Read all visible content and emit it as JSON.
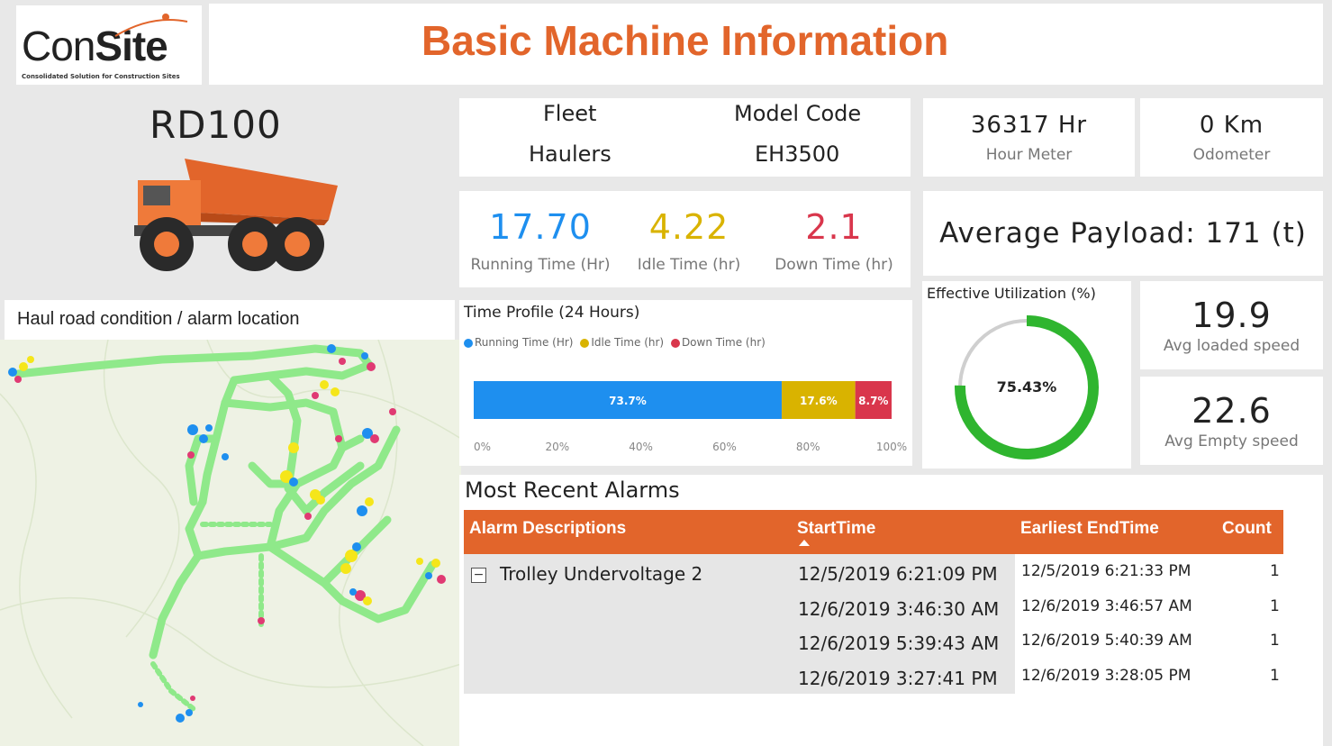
{
  "header": {
    "logo_main_prefix": "Con",
    "logo_main_suffix": "Site",
    "logo_tagline": "Consolidated Solution for Construction Sites",
    "title": "Basic Machine Information"
  },
  "machine": {
    "id": "RD100"
  },
  "fleet": {
    "fleet_label": "Fleet",
    "fleet_value": "Haulers",
    "model_label": "Model Code",
    "model_value": "EH3500"
  },
  "hour_meter": {
    "value": "36317 Hr",
    "label": "Hour Meter"
  },
  "odometer": {
    "value": "0 Km",
    "label": "Odometer"
  },
  "times": {
    "running_value": "17.70",
    "running_label": "Running Time (Hr)",
    "idle_value": "4.22",
    "idle_label": "Idle Time (hr)",
    "down_value": "2.1",
    "down_label": "Down Time (hr)"
  },
  "payload": {
    "text": "Average Payload: 171 (t)"
  },
  "map": {
    "title": "Haul road condition / alarm location"
  },
  "time_profile": {
    "title": "Time Profile (24 Hours)",
    "legend": [
      "Running Time (Hr)",
      "Idle Time (hr)",
      "Down Time (hr)"
    ]
  },
  "utilization": {
    "title": "Effective Utilization (%)",
    "value_text": "75.43%",
    "value": 75.43
  },
  "speeds": {
    "loaded_value": "19.9",
    "loaded_label": "Avg loaded speed",
    "empty_value": "22.6",
    "empty_label": "Avg Empty speed"
  },
  "alarms": {
    "title": "Most Recent Alarms",
    "columns": [
      "Alarm Descriptions",
      "StartTime",
      "Earliest EndTime",
      "Count"
    ],
    "group": "Trolley Undervoltage 2",
    "expand_symbol": "−",
    "rows": [
      {
        "start": "12/5/2019 6:21:09 PM",
        "end": "12/5/2019 6:21:33 PM",
        "count": "1"
      },
      {
        "start": "12/6/2019 3:46:30 AM",
        "end": "12/6/2019 3:46:57 AM",
        "count": "1"
      },
      {
        "start": "12/6/2019 5:39:43 AM",
        "end": "12/6/2019 5:40:39 AM",
        "count": "1"
      },
      {
        "start": "12/6/2019 3:27:41 PM",
        "end": "12/6/2019 3:28:05 PM",
        "count": "1"
      }
    ]
  },
  "colors": {
    "accent": "#e2652b",
    "running": "#1e8fef",
    "idle": "#d9b300",
    "down": "#d9364c",
    "gauge": "#2fb52f",
    "road": "#8fe98a"
  },
  "chart_data": {
    "type": "bar",
    "title": "Time Profile (24 Hours)",
    "orientation": "horizontal-stacked-100",
    "series": [
      {
        "name": "Running Time (Hr)",
        "values": [
          73.7
        ],
        "label": "73.7%"
      },
      {
        "name": "Idle Time (hr)",
        "values": [
          17.6
        ],
        "label": "17.6%"
      },
      {
        "name": "Down Time (hr)",
        "values": [
          8.7
        ],
        "label": "8.7%"
      }
    ],
    "xticks": [
      "0%",
      "20%",
      "40%",
      "60%",
      "80%",
      "100%"
    ],
    "xlim": [
      0,
      100
    ]
  }
}
